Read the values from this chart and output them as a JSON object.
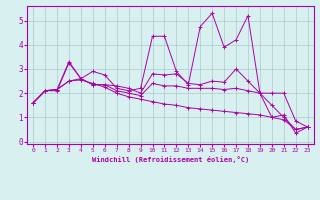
{
  "xlabel": "Windchill (Refroidissement éolien,°C)",
  "bg_color": "#d8f0f0",
  "line_color": "#aa00aa",
  "grid_color": "#aacccc",
  "xlim": [
    -0.5,
    23.5
  ],
  "ylim": [
    -0.1,
    5.6
  ],
  "yticks": [
    0,
    1,
    2,
    3,
    4,
    5
  ],
  "xticks": [
    0,
    1,
    2,
    3,
    4,
    5,
    6,
    7,
    8,
    9,
    10,
    11,
    12,
    13,
    14,
    15,
    16,
    17,
    18,
    19,
    20,
    21,
    22,
    23
  ],
  "lines": [
    [
      1.6,
      2.1,
      2.1,
      3.25,
      2.6,
      2.9,
      2.75,
      2.2,
      2.1,
      2.2,
      4.35,
      4.35,
      2.9,
      2.35,
      4.75,
      5.3,
      3.9,
      4.2,
      5.2,
      2.0,
      1.0,
      1.1,
      0.35,
      0.6
    ],
    [
      1.6,
      2.1,
      2.15,
      3.3,
      2.6,
      2.35,
      2.35,
      2.3,
      2.2,
      2.0,
      2.8,
      2.75,
      2.8,
      2.4,
      2.35,
      2.5,
      2.45,
      3.0,
      2.5,
      2.0,
      2.0,
      2.0,
      0.85,
      0.6
    ],
    [
      1.6,
      2.1,
      2.15,
      2.5,
      2.6,
      2.35,
      2.35,
      2.1,
      2.0,
      1.9,
      2.4,
      2.3,
      2.3,
      2.2,
      2.2,
      2.2,
      2.15,
      2.2,
      2.1,
      2.0,
      1.5,
      1.0,
      0.5,
      0.6
    ],
    [
      1.6,
      2.1,
      2.15,
      2.5,
      2.55,
      2.4,
      2.25,
      2.0,
      1.85,
      1.75,
      1.65,
      1.55,
      1.5,
      1.4,
      1.35,
      1.3,
      1.25,
      1.2,
      1.15,
      1.1,
      1.0,
      0.9,
      0.5,
      0.6
    ]
  ]
}
